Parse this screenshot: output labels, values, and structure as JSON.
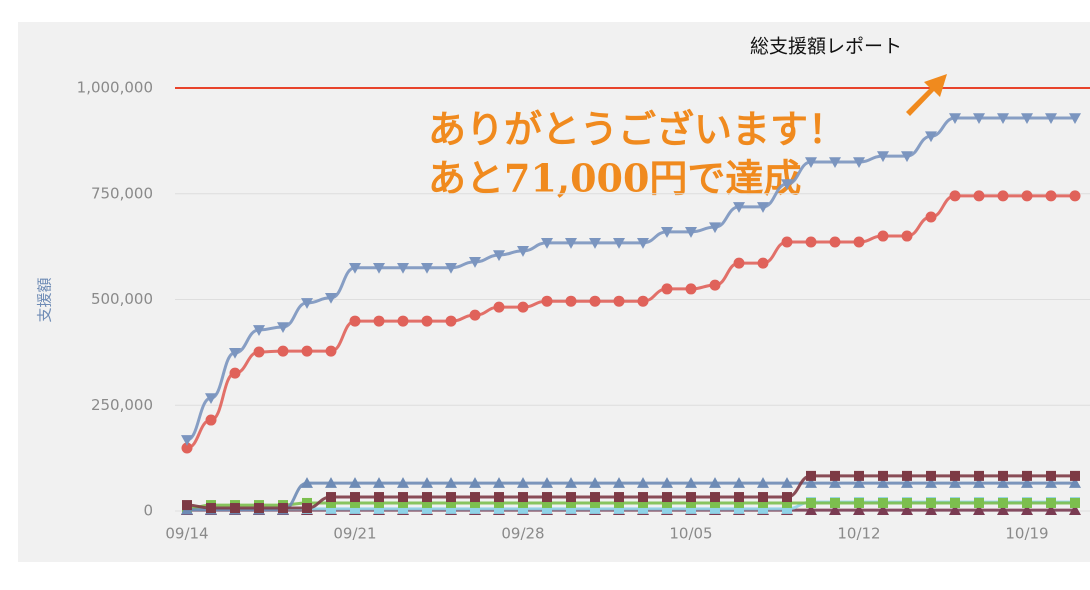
{
  "chart_data": {
    "type": "line",
    "title": "総支援額レポート",
    "y_label": "支援額",
    "annotation": [
      "ありがとうございます！",
      "あと71,000円で達成"
    ],
    "categories": [
      "09/14",
      null,
      null,
      null,
      null,
      null,
      null,
      "09/21",
      null,
      null,
      null,
      null,
      null,
      null,
      "09/28",
      null,
      null,
      null,
      null,
      null,
      null,
      "10/05",
      null,
      null,
      null,
      null,
      null,
      null,
      "10/12",
      null,
      null,
      null,
      null,
      null,
      null,
      "10/19",
      null,
      null
    ],
    "ylim": [
      0,
      1000000
    ],
    "yticks": [
      0,
      {
        "value": 250000,
        "label": "250,000"
      },
      {
        "value": 500000,
        "label": "500,000"
      },
      {
        "value": 750000,
        "label": "750,000"
      },
      {
        "value": 1000000,
        "label": "1,000,000"
      }
    ],
    "grid": true,
    "plot_line": {
      "value": 1000000,
      "color": "#e8432b"
    },
    "series": [
      {
        "color": "#7a3b52",
        "marker": "triangle",
        "values": [
          2000,
          2000,
          2000,
          2000,
          2000,
          2000,
          2000,
          2000,
          2000,
          2000,
          2000,
          2000,
          2000,
          2000,
          2000,
          2000,
          2000,
          2000,
          2000,
          2000,
          2000,
          2000,
          2000,
          2000,
          2000,
          2000,
          2000,
          2000,
          2000,
          2000,
          2000,
          2000,
          2000,
          2000,
          2000,
          2000,
          2000,
          2000
        ]
      },
      {
        "color": "#8fd3e8",
        "marker": "square",
        "values": [
          5000,
          5000,
          5000,
          5000,
          5000,
          5000,
          5000,
          5000,
          5000,
          5000,
          5000,
          5000,
          5000,
          5000,
          5000,
          5000,
          5000,
          5000,
          5000,
          5000,
          5000,
          5000,
          5000,
          5000,
          5000,
          5000,
          21000,
          21000,
          21000,
          21000,
          21000,
          21000,
          21000,
          21000,
          21000,
          21000,
          21000,
          21000
        ]
      },
      {
        "color": "#7cbf4e",
        "marker": "square",
        "values": [
          5000,
          14000,
          14000,
          14000,
          14000,
          19000,
          19000,
          19000,
          19000,
          19000,
          19000,
          19000,
          19000,
          19000,
          19000,
          19000,
          19000,
          19000,
          19000,
          19000,
          19000,
          19000,
          19000,
          19000,
          19000,
          19000,
          19000,
          19000,
          19000,
          19000,
          19000,
          19000,
          19000,
          19000,
          19000,
          19000,
          19000,
          19000
        ]
      },
      {
        "color": "#6e8bb5",
        "marker": "triangle",
        "values": [
          3000,
          3000,
          3000,
          3000,
          3000,
          66000,
          66000,
          66000,
          66000,
          66000,
          66000,
          66000,
          66000,
          66000,
          66000,
          66000,
          66000,
          66000,
          66000,
          66000,
          66000,
          66000,
          66000,
          66000,
          66000,
          66000,
          66000,
          66000,
          66000,
          66000,
          66000,
          66000,
          66000,
          66000,
          66000,
          66000,
          66000,
          66000
        ]
      },
      {
        "color": "#7d3a45",
        "marker": "square",
        "values": [
          14000,
          7000,
          7000,
          7000,
          7000,
          7000,
          33000,
          33000,
          33000,
          33000,
          33000,
          33000,
          33000,
          33000,
          33000,
          33000,
          33000,
          33000,
          33000,
          33000,
          33000,
          33000,
          33000,
          33000,
          33000,
          33000,
          83000,
          83000,
          83000,
          83000,
          83000,
          83000,
          83000,
          83000,
          83000,
          83000,
          83000,
          83000
        ]
      },
      {
        "color": "#e0625a",
        "marker": "circle",
        "values": [
          149000,
          215000,
          326000,
          376000,
          378000,
          378000,
          378000,
          449000,
          449000,
          449000,
          449000,
          449000,
          463000,
          482000,
          482000,
          496000,
          496000,
          496000,
          496000,
          496000,
          525000,
          525000,
          534000,
          586000,
          586000,
          636000,
          636000,
          636000,
          636000,
          650000,
          650000,
          695000,
          745000,
          745000,
          745000,
          745000,
          745000,
          745000
        ]
      },
      {
        "color": "#7b95bf",
        "marker": "down-triangle",
        "values": [
          168000,
          267000,
          374000,
          428000,
          435000,
          492000,
          504000,
          575000,
          575000,
          575000,
          575000,
          575000,
          589000,
          605000,
          615000,
          634000,
          634000,
          634000,
          634000,
          634000,
          660000,
          660000,
          671000,
          719000,
          719000,
          773000,
          825000,
          825000,
          825000,
          839000,
          839000,
          886000,
          929000,
          929000,
          929000,
          929000,
          929000,
          929000
        ]
      }
    ]
  }
}
